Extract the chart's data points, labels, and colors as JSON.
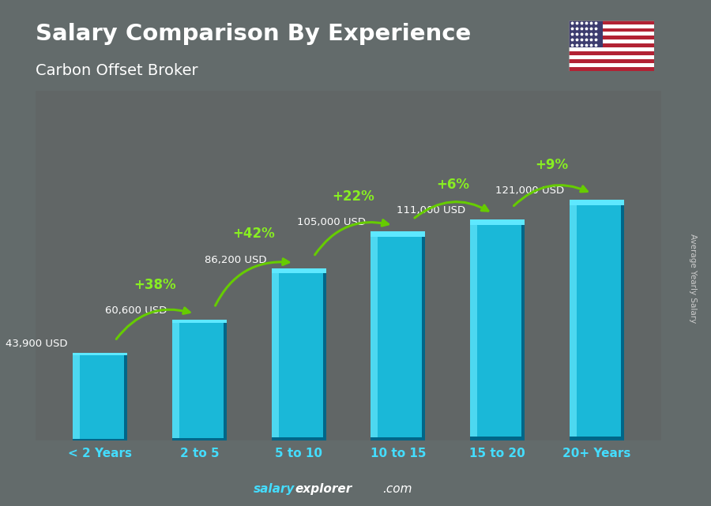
{
  "title": "Salary Comparison By Experience",
  "subtitle": "Carbon Offset Broker",
  "categories": [
    "< 2 Years",
    "2 to 5",
    "5 to 10",
    "10 to 15",
    "15 to 20",
    "20+ Years"
  ],
  "values": [
    43900,
    60600,
    86200,
    105000,
    111000,
    121000
  ],
  "salary_labels": [
    "43,900 USD",
    "60,600 USD",
    "86,200 USD",
    "105,000 USD",
    "111,000 USD",
    "121,000 USD"
  ],
  "pct_labels": [
    null,
    "+38%",
    "+42%",
    "+22%",
    "+6%",
    "+9%"
  ],
  "bar_color_front": "#1ab8d8",
  "bar_color_left": "#4dd8f0",
  "bar_color_top": "#5ee8ff",
  "bar_color_right": "#0088aa",
  "bar_color_shadow": "#006688",
  "background_color": "#636b6b",
  "title_color": "#ffffff",
  "subtitle_color": "#ffffff",
  "category_color": "#44ddff",
  "salary_label_color": "#ffffff",
  "pct_color": "#88ee22",
  "arrow_color": "#66cc00",
  "ylabel": "Average Yearly Salary",
  "footer_salary_color": "#44ddff",
  "footer_rest_color": "#ffffff",
  "ylabel_color": "#cccccc"
}
